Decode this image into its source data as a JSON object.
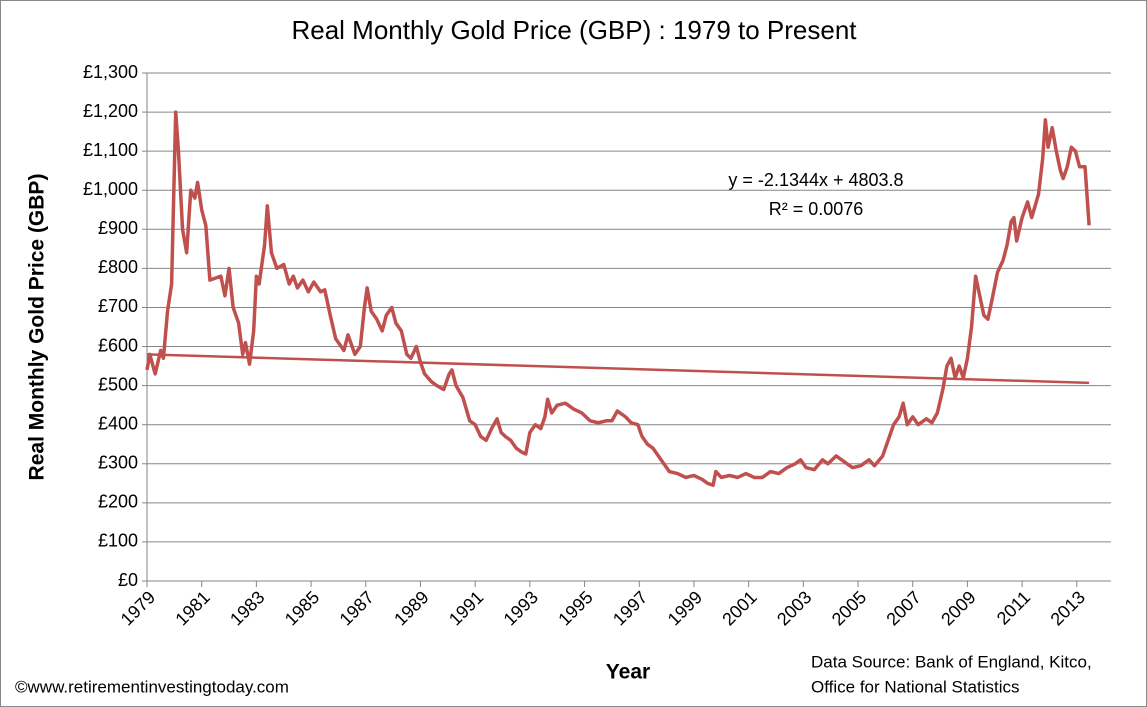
{
  "chart_data": {
    "type": "line",
    "title": "Real Monthly Gold Price (GBP) : 1979 to Present",
    "x_label": "Year",
    "y_label": "Real Monthly Gold Price  (GBP)",
    "source_lines": [
      "Data Source: Bank of England, Kitco,",
      "Office for National Statistics"
    ],
    "credit": "©www.retirementinvestingtoday.com",
    "annotations": [
      "y = -2.1344x + 4803.8",
      "R² = 0.0076"
    ],
    "color": "#c0504d",
    "x": [
      1979.0,
      1979.1,
      1979.3,
      1979.5,
      1979.6,
      1979.75,
      1979.9,
      1980.05,
      1980.15,
      1980.3,
      1980.45,
      1980.6,
      1980.75,
      1980.85,
      1981.0,
      1981.15,
      1981.3,
      1981.5,
      1981.7,
      1981.85,
      1982.0,
      1982.15,
      1982.35,
      1982.5,
      1982.6,
      1982.75,
      1982.9,
      1983.0,
      1983.1,
      1983.3,
      1983.4,
      1983.55,
      1983.75,
      1984.0,
      1984.2,
      1984.35,
      1984.5,
      1984.7,
      1984.9,
      1985.1,
      1985.35,
      1985.5,
      1985.7,
      1985.9,
      1986.0,
      1986.2,
      1986.35,
      1986.6,
      1986.8,
      1986.95,
      1987.05,
      1987.2,
      1987.4,
      1987.6,
      1987.75,
      1987.95,
      1988.1,
      1988.3,
      1988.5,
      1988.65,
      1988.85,
      1989.0,
      1989.15,
      1989.4,
      1989.6,
      1989.85,
      1990.05,
      1990.15,
      1990.3,
      1990.55,
      1990.8,
      1991.0,
      1991.2,
      1991.4,
      1991.6,
      1991.8,
      1991.95,
      1992.1,
      1992.3,
      1992.5,
      1992.7,
      1992.85,
      1993.0,
      1993.2,
      1993.4,
      1993.55,
      1993.65,
      1993.8,
      1994.0,
      1994.3,
      1994.6,
      1994.9,
      1995.2,
      1995.5,
      1995.8,
      1996.0,
      1996.2,
      1996.5,
      1996.7,
      1996.95,
      1997.1,
      1997.3,
      1997.5,
      1997.7,
      1997.9,
      1998.1,
      1998.4,
      1998.7,
      1999.0,
      1999.3,
      1999.5,
      1999.7,
      1999.8,
      2000.0,
      2000.3,
      2000.6,
      2000.9,
      2001.2,
      2001.5,
      2001.8,
      2002.1,
      2002.4,
      2002.7,
      2002.9,
      2003.1,
      2003.4,
      2003.7,
      2003.9,
      2004.2,
      2004.5,
      2004.8,
      2005.1,
      2005.4,
      2005.6,
      2005.9,
      2006.1,
      2006.3,
      2006.5,
      2006.65,
      2006.8,
      2007.0,
      2007.2,
      2007.5,
      2007.7,
      2007.9,
      2008.1,
      2008.25,
      2008.4,
      2008.55,
      2008.7,
      2008.85,
      2009.0,
      2009.15,
      2009.3,
      2009.45,
      2009.6,
      2009.75,
      2009.9,
      2010.1,
      2010.3,
      2010.45,
      2010.6,
      2010.7,
      2010.8,
      2011.0,
      2011.2,
      2011.35,
      2011.6,
      2011.75,
      2011.85,
      2011.95,
      2012.1,
      2012.25,
      2012.4,
      2012.5,
      2012.65,
      2012.8,
      2012.95,
      2013.1,
      2013.3,
      2013.45
    ],
    "values": [
      540,
      580,
      530,
      590,
      570,
      690,
      760,
      1200,
      1100,
      900,
      840,
      1000,
      980,
      1020,
      950,
      910,
      770,
      775,
      780,
      730,
      800,
      700,
      660,
      580,
      610,
      555,
      640,
      780,
      760,
      860,
      960,
      840,
      800,
      810,
      760,
      780,
      750,
      770,
      740,
      765,
      740,
      745,
      680,
      620,
      610,
      590,
      630,
      580,
      600,
      700,
      750,
      690,
      670,
      640,
      680,
      700,
      660,
      640,
      580,
      570,
      600,
      560,
      530,
      510,
      500,
      490,
      530,
      540,
      500,
      470,
      410,
      400,
      370,
      360,
      390,
      415,
      380,
      370,
      360,
      340,
      330,
      325,
      380,
      400,
      390,
      420,
      465,
      430,
      450,
      455,
      440,
      430,
      410,
      405,
      410,
      410,
      435,
      420,
      405,
      400,
      370,
      350,
      340,
      320,
      300,
      280,
      275,
      265,
      270,
      260,
      250,
      245,
      280,
      265,
      270,
      265,
      275,
      265,
      265,
      280,
      275,
      290,
      300,
      310,
      290,
      285,
      310,
      300,
      320,
      305,
      290,
      295,
      310,
      295,
      320,
      360,
      400,
      420,
      455,
      400,
      420,
      400,
      415,
      405,
      430,
      490,
      550,
      570,
      520,
      550,
      520,
      570,
      650,
      780,
      730,
      680,
      670,
      720,
      790,
      820,
      860,
      920,
      930,
      870,
      930,
      970,
      930,
      990,
      1080,
      1180,
      1110,
      1160,
      1100,
      1050,
      1030,
      1060,
      1110,
      1100,
      1060,
      1060,
      910
    ],
    "trendline": {
      "color": "#c0504d",
      "x": [
        1979.0,
        2013.45
      ],
      "values": [
        580,
        507
      ]
    },
    "xlim": [
      1979,
      2014.25
    ],
    "xticks": [
      1979,
      1981,
      1983,
      1985,
      1987,
      1989,
      1991,
      1993,
      1995,
      1997,
      1999,
      2001,
      2003,
      2005,
      2007,
      2009,
      2011,
      2013
    ],
    "ylim": [
      0,
      1300
    ],
    "yticks": [
      {
        "value": 0,
        "label": "£0"
      },
      {
        "value": 100,
        "label": "£100"
      },
      {
        "value": 200,
        "label": "£200"
      },
      {
        "value": 300,
        "label": "£300"
      },
      {
        "value": 400,
        "label": "£400"
      },
      {
        "value": 500,
        "label": "£500"
      },
      {
        "value": 600,
        "label": "£600"
      },
      {
        "value": 700,
        "label": "£700"
      },
      {
        "value": 800,
        "label": "£800"
      },
      {
        "value": 900,
        "label": "£900"
      },
      {
        "value": 1000,
        "label": "£1,000"
      },
      {
        "value": 1100,
        "label": "£1,100"
      },
      {
        "value": 1200,
        "label": "£1,200"
      },
      {
        "value": 1300,
        "label": "£1,300"
      }
    ],
    "grid": true
  }
}
